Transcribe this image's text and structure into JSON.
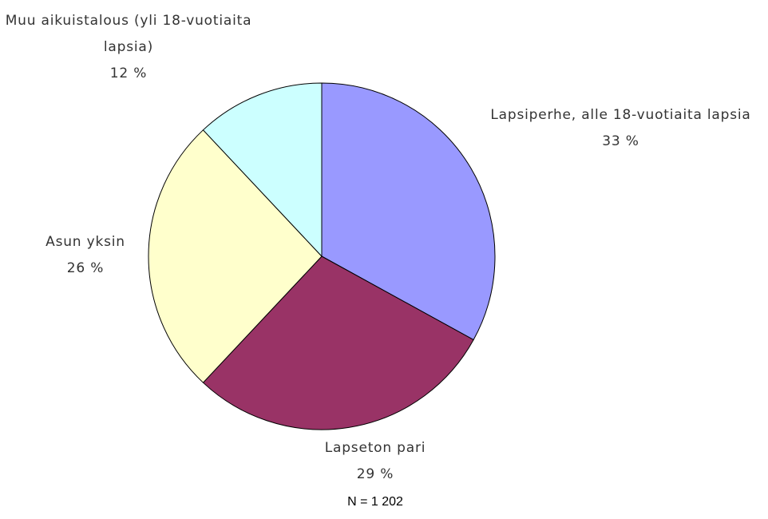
{
  "chart_data": {
    "type": "pie",
    "categories": [
      "Lapsiperhe, alle 18-vuotiaita lapsia",
      "Lapseton pari",
      "Asun yksin",
      "Muu aikuistalous (yli 18-vuotiaita lapsia)"
    ],
    "values": [
      33,
      29,
      26,
      12
    ],
    "value_labels": [
      "33 %",
      "29 %",
      "26 %",
      "12 %"
    ],
    "colors": [
      "#9999ff",
      "#993366",
      "#ffffcc",
      "#ccffff"
    ],
    "note": "N = 1 202"
  }
}
